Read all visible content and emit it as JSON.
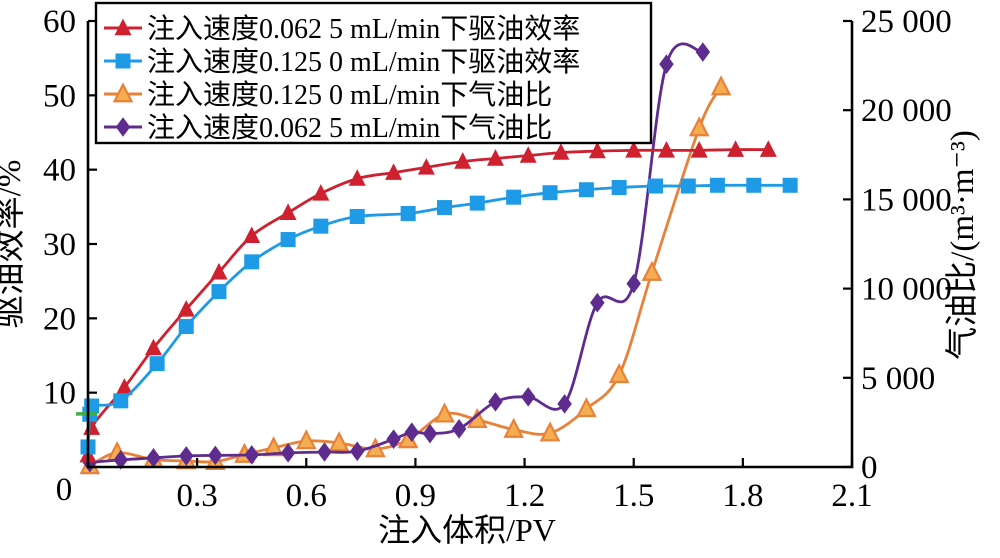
{
  "chart_data": {
    "type": "line",
    "title": "",
    "xlabel": "注入体积/PV",
    "ylabel_left": "驱油效率/%",
    "ylabel_right": "气油比/(m³·m⁻³)",
    "grid": false,
    "legend_position": "top-left",
    "xlim": [
      0,
      2.1
    ],
    "xticks": [
      0,
      0.3,
      0.6,
      0.9,
      1.2,
      1.5,
      1.8,
      2.1
    ],
    "xtick_labels": [
      "0",
      "0.3",
      "0.6",
      "0.9",
      "1.2",
      "1.5",
      "1.8",
      "2.1"
    ],
    "ylim_left": [
      0,
      60
    ],
    "yticks_left": [
      0,
      10,
      20,
      30,
      40,
      50,
      60
    ],
    "ytick_labels_left": [
      "0",
      "10",
      "20",
      "30",
      "40",
      "50",
      "60"
    ],
    "ylim_right": [
      0,
      25000
    ],
    "yticks_right": [
      0,
      5000,
      10000,
      15000,
      20000,
      25000
    ],
    "ytick_labels_right": [
      "0",
      "5 000",
      "10 000",
      "15 000",
      "20 000",
      "25 000"
    ],
    "series": [
      {
        "name": "eff-0.0625",
        "label": "注入速度0.062 5 mL/min下驱油效率",
        "axis": "left",
        "color": "#cf2030",
        "marker": "triangle",
        "marker_fill": "#cf2030",
        "x": [
          0,
          0.01,
          0.1,
          0.18,
          0.27,
          0.36,
          0.45,
          0.55,
          0.64,
          0.74,
          0.84,
          0.93,
          1.03,
          1.12,
          1.21,
          1.3,
          1.4,
          1.5,
          1.59,
          1.68,
          1.78,
          1.87
        ],
        "y": [
          1.6,
          5.3,
          10.7,
          16,
          21.2,
          26.2,
          31.1,
          34.2,
          36.8,
          38.8,
          39.6,
          40.3,
          41.1,
          41.5,
          41.9,
          42.3,
          42.5,
          42.6,
          42.6,
          42.6,
          42.7,
          42.7
        ]
      },
      {
        "name": "eff-0.1250",
        "label": "注入速度0.125 0 mL/min下驱油效率",
        "axis": "left",
        "color": "#1e9ae6",
        "marker": "square",
        "marker_fill": "#1e9ae6",
        "x": [
          0,
          0.005,
          0.01,
          0.09,
          0.19,
          0.27,
          0.36,
          0.45,
          0.55,
          0.64,
          0.74,
          0.88,
          0.98,
          1.07,
          1.17,
          1.27,
          1.37,
          1.46,
          1.56,
          1.65,
          1.73,
          1.83,
          1.93
        ],
        "y": [
          2.7,
          7.1,
          8.2,
          8.9,
          13.9,
          18.9,
          23.6,
          27.6,
          30.6,
          32.4,
          33.7,
          34.1,
          34.9,
          35.5,
          36.3,
          36.9,
          37.3,
          37.6,
          37.8,
          37.8,
          37.9,
          37.9,
          37.9
        ]
      },
      {
        "name": "gor-0.1250",
        "label": "注入速度0.125 0 mL/min下气油比",
        "axis": "right",
        "color": "#e8813a",
        "marker": "triangle",
        "marker_fill": "#f5ad52",
        "marker_stroke": "#e8813a",
        "x": [
          0.005,
          0.08,
          0.18,
          0.27,
          0.35,
          0.43,
          0.51,
          0.6,
          0.69,
          0.79,
          0.88,
          0.98,
          1.07,
          1.17,
          1.27,
          1.37,
          1.46,
          1.55,
          1.68,
          1.74
        ],
        "y": [
          60,
          800,
          420,
          340,
          300,
          700,
          1070,
          1460,
          1350,
          1010,
          1520,
          2960,
          2650,
          2100,
          1900,
          3260,
          5170,
          10900,
          19000,
          21300
        ]
      },
      {
        "name": "gor-0.0625",
        "label": "注入速度0.062 5 mL/min下气油比",
        "axis": "right",
        "color": "#5e2b8f",
        "marker": "diamond",
        "marker_fill": "#5e2b8f",
        "x": [
          0.005,
          0.09,
          0.18,
          0.27,
          0.35,
          0.45,
          0.55,
          0.65,
          0.74,
          0.84,
          0.89,
          0.94,
          1.02,
          1.12,
          1.21,
          1.31,
          1.4,
          1.5,
          1.59,
          1.69
        ],
        "y": [
          250,
          400,
          510,
          620,
          650,
          680,
          790,
          840,
          880,
          1560,
          1950,
          1870,
          2140,
          3650,
          3930,
          3540,
          9210,
          10280,
          22580,
          23260
        ]
      }
    ],
    "stray_mark": {
      "color": "#3fae49",
      "at_x": 0,
      "y_left": 7.15
    },
    "axis_color": "#000000",
    "legend_border_color": "#000000",
    "legend_background": "#ffffff"
  }
}
